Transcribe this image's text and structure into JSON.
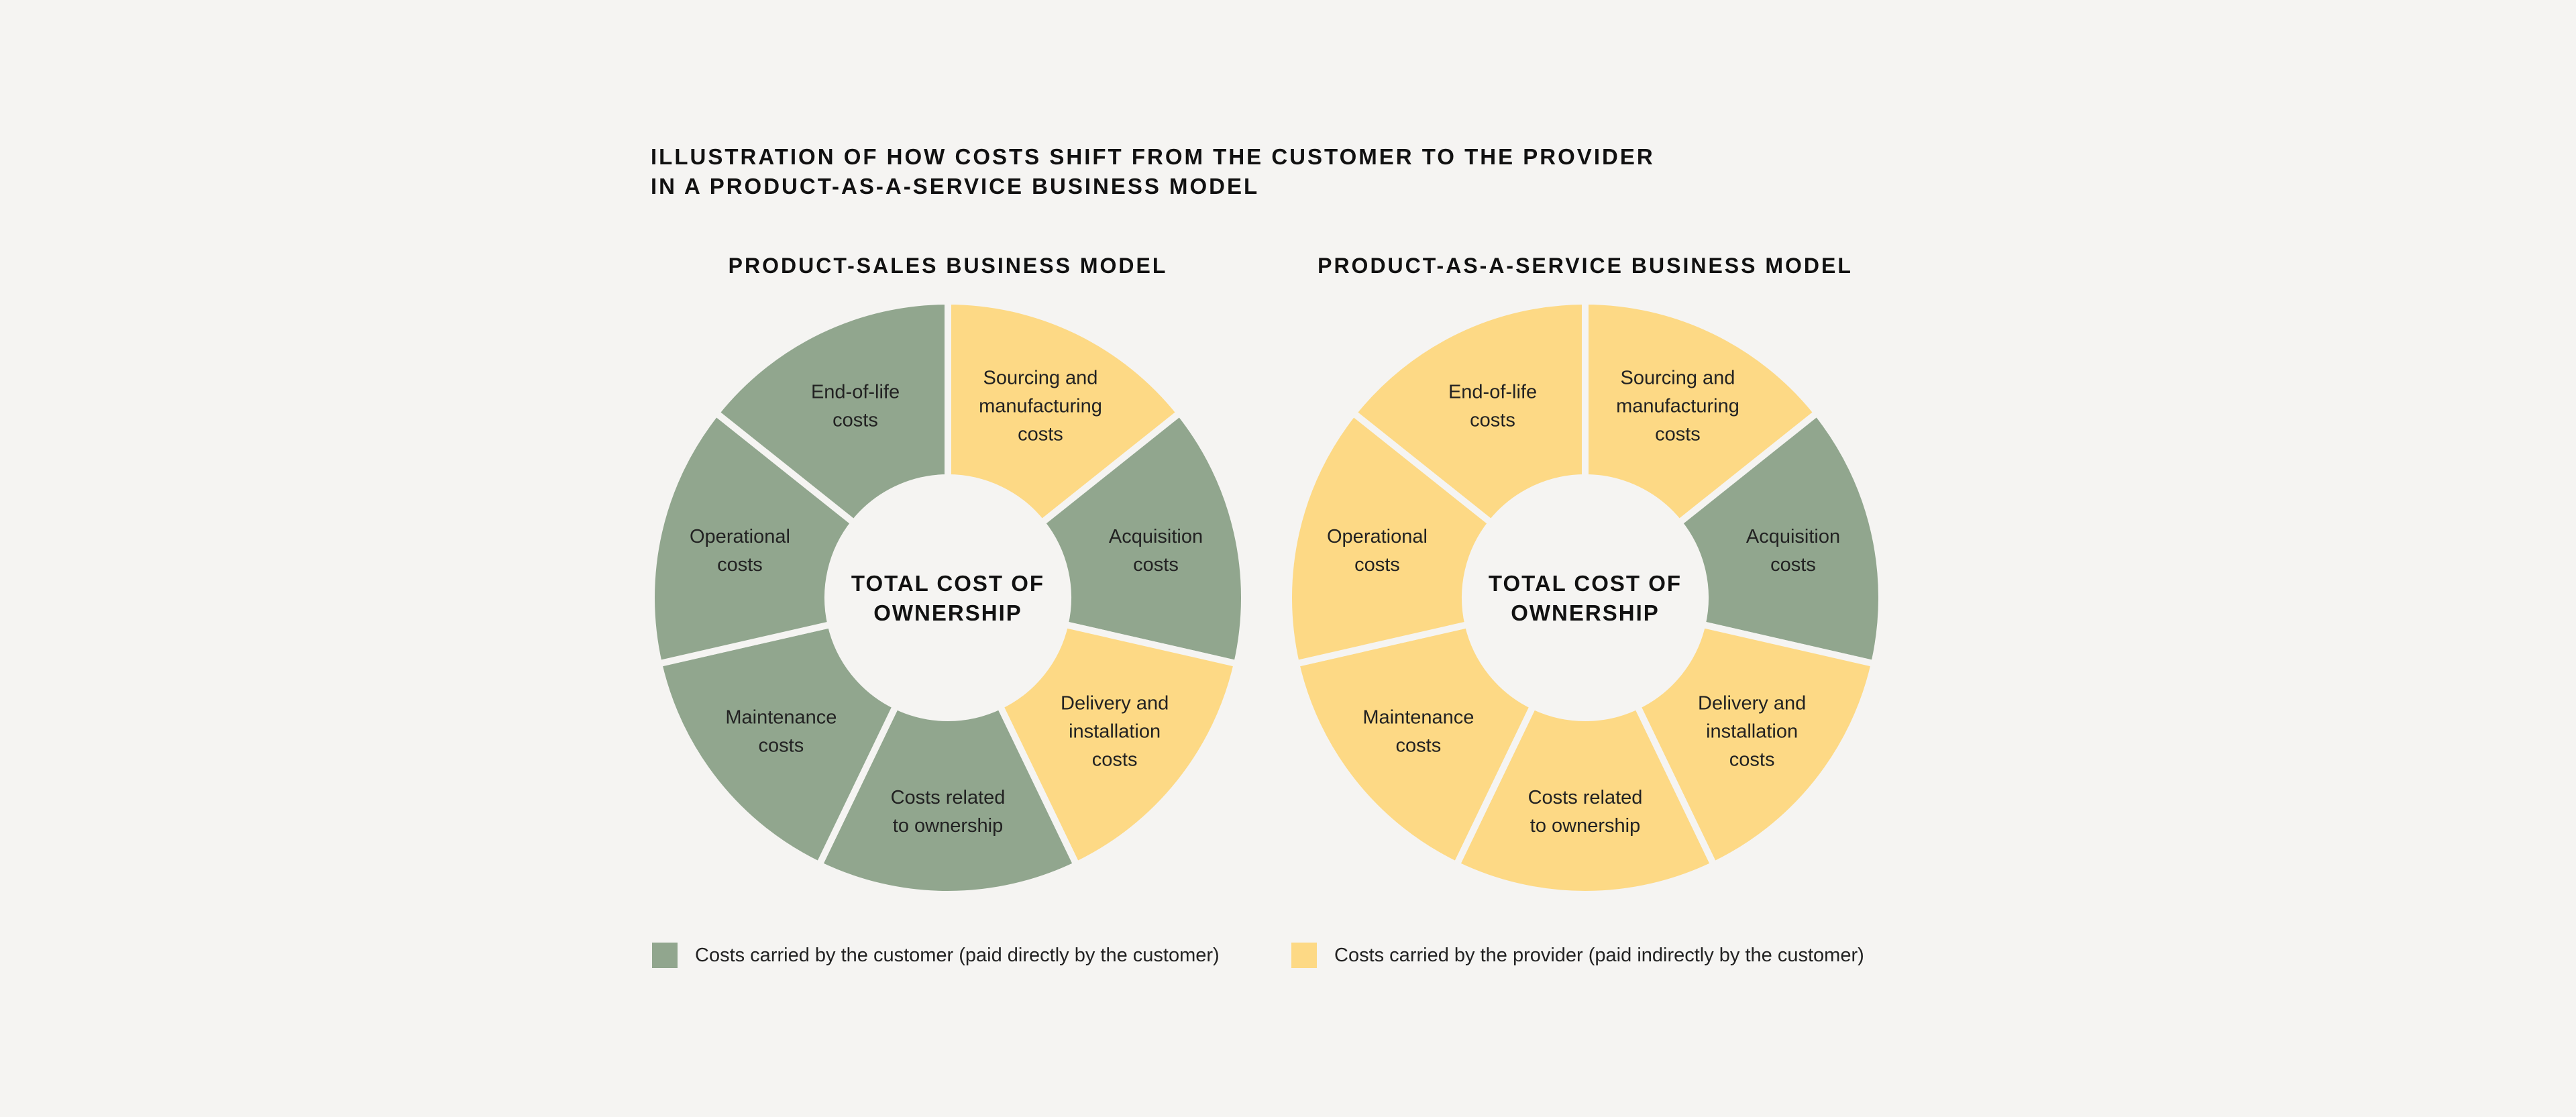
{
  "title": {
    "line1": "ILLUSTRATION OF HOW COSTS SHIFT FROM THE CUSTOMER TO THE PROVIDER",
    "line2": "IN A PRODUCT-AS-A-SERVICE BUSINESS MODEL"
  },
  "colors": {
    "customer": "#91a68e",
    "provider": "#fdd985",
    "background": "#f5f4f2"
  },
  "chart_data": [
    {
      "type": "donut",
      "title": "PRODUCT-SALES BUSINESS MODEL",
      "center_label": [
        "TOTAL COST OF",
        "OWNERSHIP"
      ],
      "segments": [
        {
          "label": [
            "Sourcing and",
            "manufacturing",
            "costs"
          ],
          "carrier": "provider",
          "value": 1
        },
        {
          "label": [
            "Acquisition",
            "costs"
          ],
          "carrier": "customer",
          "value": 1
        },
        {
          "label": [
            "Delivery and",
            "installation",
            "costs"
          ],
          "carrier": "provider",
          "value": 1
        },
        {
          "label": [
            "Costs related",
            "to ownership"
          ],
          "carrier": "customer",
          "value": 1
        },
        {
          "label": [
            "Maintenance",
            "costs"
          ],
          "carrier": "customer",
          "value": 1
        },
        {
          "label": [
            "Operational",
            "costs"
          ],
          "carrier": "customer",
          "value": 1
        },
        {
          "label": [
            "End-of-life",
            "costs"
          ],
          "carrier": "customer",
          "value": 1
        }
      ]
    },
    {
      "type": "donut",
      "title": "PRODUCT-AS-A-SERVICE BUSINESS MODEL",
      "center_label": [
        "TOTAL COST OF",
        "OWNERSHIP"
      ],
      "segments": [
        {
          "label": [
            "Sourcing and",
            "manufacturing",
            "costs"
          ],
          "carrier": "provider",
          "value": 1
        },
        {
          "label": [
            "Acquisition",
            "costs"
          ],
          "carrier": "customer",
          "value": 1
        },
        {
          "label": [
            "Delivery and",
            "installation",
            "costs"
          ],
          "carrier": "provider",
          "value": 1
        },
        {
          "label": [
            "Costs related",
            "to ownership"
          ],
          "carrier": "provider",
          "value": 1
        },
        {
          "label": [
            "Maintenance",
            "costs"
          ],
          "carrier": "provider",
          "value": 1
        },
        {
          "label": [
            "Operational",
            "costs"
          ],
          "carrier": "provider",
          "value": 1
        },
        {
          "label": [
            "End-of-life",
            "costs"
          ],
          "carrier": "provider",
          "value": 1
        }
      ]
    }
  ],
  "legend": [
    {
      "key": "customer",
      "label": "Costs carried by the customer (paid directly by the customer)"
    },
    {
      "key": "provider",
      "label": "Costs carried by the provider (paid indirectly by the customer)"
    }
  ]
}
